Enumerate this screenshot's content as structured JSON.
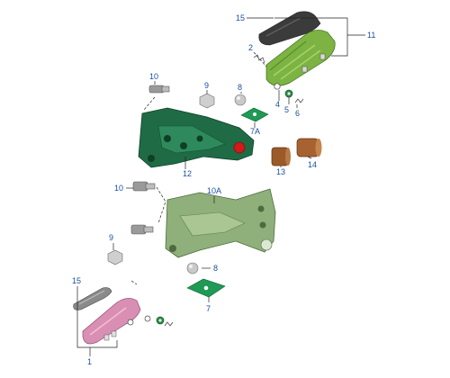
{
  "diagram": {
    "callouts": {
      "c15_top": "15",
      "c11": "11",
      "c2": "2",
      "c4": "4",
      "c5": "5",
      "c6": "6",
      "c10_top": "10",
      "c9_top": "9",
      "c8_top": "8",
      "c7a": "7A",
      "c12": "12",
      "c13": "13",
      "c14": "14",
      "c10_mid": "10",
      "c10a": "10A",
      "c9_bottom": "9",
      "c8_bottom": "8",
      "c7": "7",
      "c15_bottom": "15",
      "c1": "1"
    },
    "colors": {
      "bracket_dark_green": "#1f6b45",
      "bracket_light_green": "#8fb07a",
      "footpeg_green": "#7cb342",
      "footpeg_pink": "#d98fb3",
      "bushing_brown": "#9b5a2a",
      "pad_green": "#1e9a55",
      "red_pivot": "#d11a1a",
      "rubber_dark": "#3b3b3b",
      "ball_grey": "#c9c9c9",
      "callout_blue": "#1a4fa0"
    }
  }
}
